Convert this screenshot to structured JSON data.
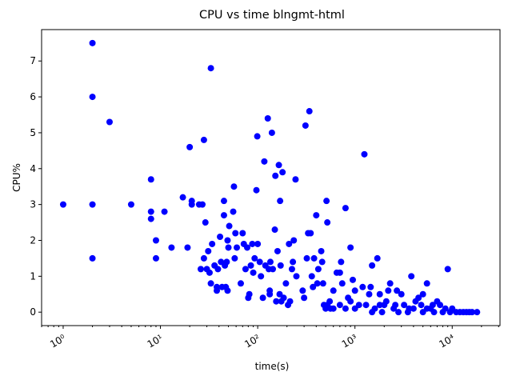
{
  "chart_data": {
    "type": "scatter",
    "title": "CPU vs time blngmt-html",
    "xlabel": "time(s)",
    "ylabel": "CPU%",
    "xscale": "log",
    "xlim": [
      0.6,
      31000
    ],
    "ylim": [
      -0.375,
      7.875
    ],
    "xticks": [
      {
        "value": 1,
        "label": "10⁰"
      },
      {
        "value": 10,
        "label": "10¹"
      },
      {
        "value": 100,
        "label": "10²"
      },
      {
        "value": 1000,
        "label": "10³"
      },
      {
        "value": 10000,
        "label": "10⁴"
      }
    ],
    "yticks": [
      0,
      1,
      2,
      3,
      4,
      5,
      6,
      7
    ],
    "color": "#0000ff",
    "x": [
      1,
      2,
      2,
      2,
      2,
      3,
      5,
      8,
      8,
      8,
      9,
      9,
      11,
      13,
      17,
      19,
      20,
      21,
      21,
      25,
      27,
      28,
      26,
      28,
      29,
      30,
      31,
      32,
      33,
      33,
      34,
      36,
      38,
      38,
      39,
      41,
      42,
      43,
      45,
      45,
      46,
      47,
      48,
      49,
      49,
      50,
      51,
      56,
      57,
      58,
      59,
      61,
      67,
      70,
      72,
      75,
      78,
      80,
      82,
      85,
      88,
      90,
      93,
      97,
      99,
      100,
      105,
      108,
      113,
      117,
      120,
      127,
      130,
      133,
      133,
      135,
      140,
      143,
      150,
      152,
      155,
      160,
      165,
      168,
      170,
      172,
      175,
      180,
      185,
      195,
      205,
      210,
      215,
      225,
      230,
      235,
      245,
      250,
      290,
      300,
      310,
      320,
      330,
      340,
      350,
      360,
      370,
      380,
      400,
      410,
      420,
      450,
      460,
      470,
      480,
      500,
      510,
      520,
      550,
      600,
      650,
      700,
      720,
      740,
      800,
      850,
      900,
      950,
      1000,
      1100,
      1200,
      1250,
      1400,
      1450,
      1500,
      1700,
      1800,
      2000,
      2200,
      2300,
      2700,
      3000,
      3800,
      4500,
      5000,
      5500,
      7000,
      9000,
      10000,
      600,
      700,
      800,
      900,
      1000,
      1300,
      1500,
      1600,
      1900,
      2100,
      2500,
      2800,
      3200,
      3500,
      4000,
      4200,
      5000,
      6000,
      6500,
      7500,
      8000,
      9500,
      11000,
      12000,
      13000,
      14000,
      15000,
      16000,
      18000,
      520,
      560,
      1800,
      2600,
      3600,
      4800,
      5500,
      8500,
      6300
    ],
    "y": [
      3,
      7.5,
      6,
      3,
      1.5,
      5.3,
      3,
      3.7,
      2.8,
      2.6,
      2,
      1.5,
      2.8,
      1.8,
      3.2,
      1.8,
      4.6,
      3.1,
      3,
      3,
      3,
      4.8,
      1.2,
      1.5,
      2.5,
      1.2,
      1.7,
      1.1,
      6.8,
      0.8,
      1.9,
      1.3,
      0.7,
      0.6,
      1.2,
      2.1,
      1.4,
      0.7,
      3.1,
      2.7,
      1.3,
      0.7,
      1.4,
      2,
      0.6,
      1.8,
      2.4,
      2.8,
      3.5,
      1.5,
      2.2,
      1.8,
      0.8,
      2.2,
      1.9,
      1.2,
      1.8,
      0.4,
      0.5,
      1.3,
      1.9,
      1.1,
      1.5,
      3.4,
      4.9,
      1.9,
      1.4,
      1,
      0.4,
      4.2,
      1.3,
      5.4,
      1.2,
      0.5,
      0.6,
      1.4,
      5,
      1.2,
      2.3,
      3.8,
      0.3,
      1.7,
      4.1,
      0.5,
      3.1,
      1.3,
      0.3,
      3.9,
      0.4,
      0.8,
      0.2,
      1.9,
      0.3,
      1.2,
      1.4,
      2,
      3.7,
      1,
      0.6,
      0.4,
      5.2,
      1.5,
      2.2,
      5.6,
      2.2,
      1,
      0.7,
      1.5,
      2.7,
      0.8,
      1.2,
      1.7,
      1.4,
      0.8,
      0.2,
      0.1,
      3.1,
      2.5,
      0.3,
      0.6,
      1.1,
      1.1,
      1.4,
      0.8,
      2.9,
      0.4,
      1.8,
      0.9,
      0.6,
      0.2,
      0.7,
      4.4,
      0.5,
      0.7,
      1.3,
      1.5,
      0.5,
      0.2,
      0.6,
      0.8,
      0.6,
      0.5,
      1,
      0.4,
      0.5,
      0.8,
      0.3,
      1.2,
      0.1,
      0.1,
      0.2,
      0.1,
      0.3,
      0.1,
      0.2,
      0,
      0.1,
      0,
      0.3,
      0.1,
      0,
      0.2,
      0,
      0.1,
      0.3,
      0,
      0.1,
      0,
      0.2,
      0,
      0,
      0,
      0,
      0,
      0,
      0,
      0,
      0,
      0.2,
      0.1,
      0.2,
      0.2,
      0.1,
      0.2,
      0.1,
      0.1,
      0.2
    ]
  }
}
